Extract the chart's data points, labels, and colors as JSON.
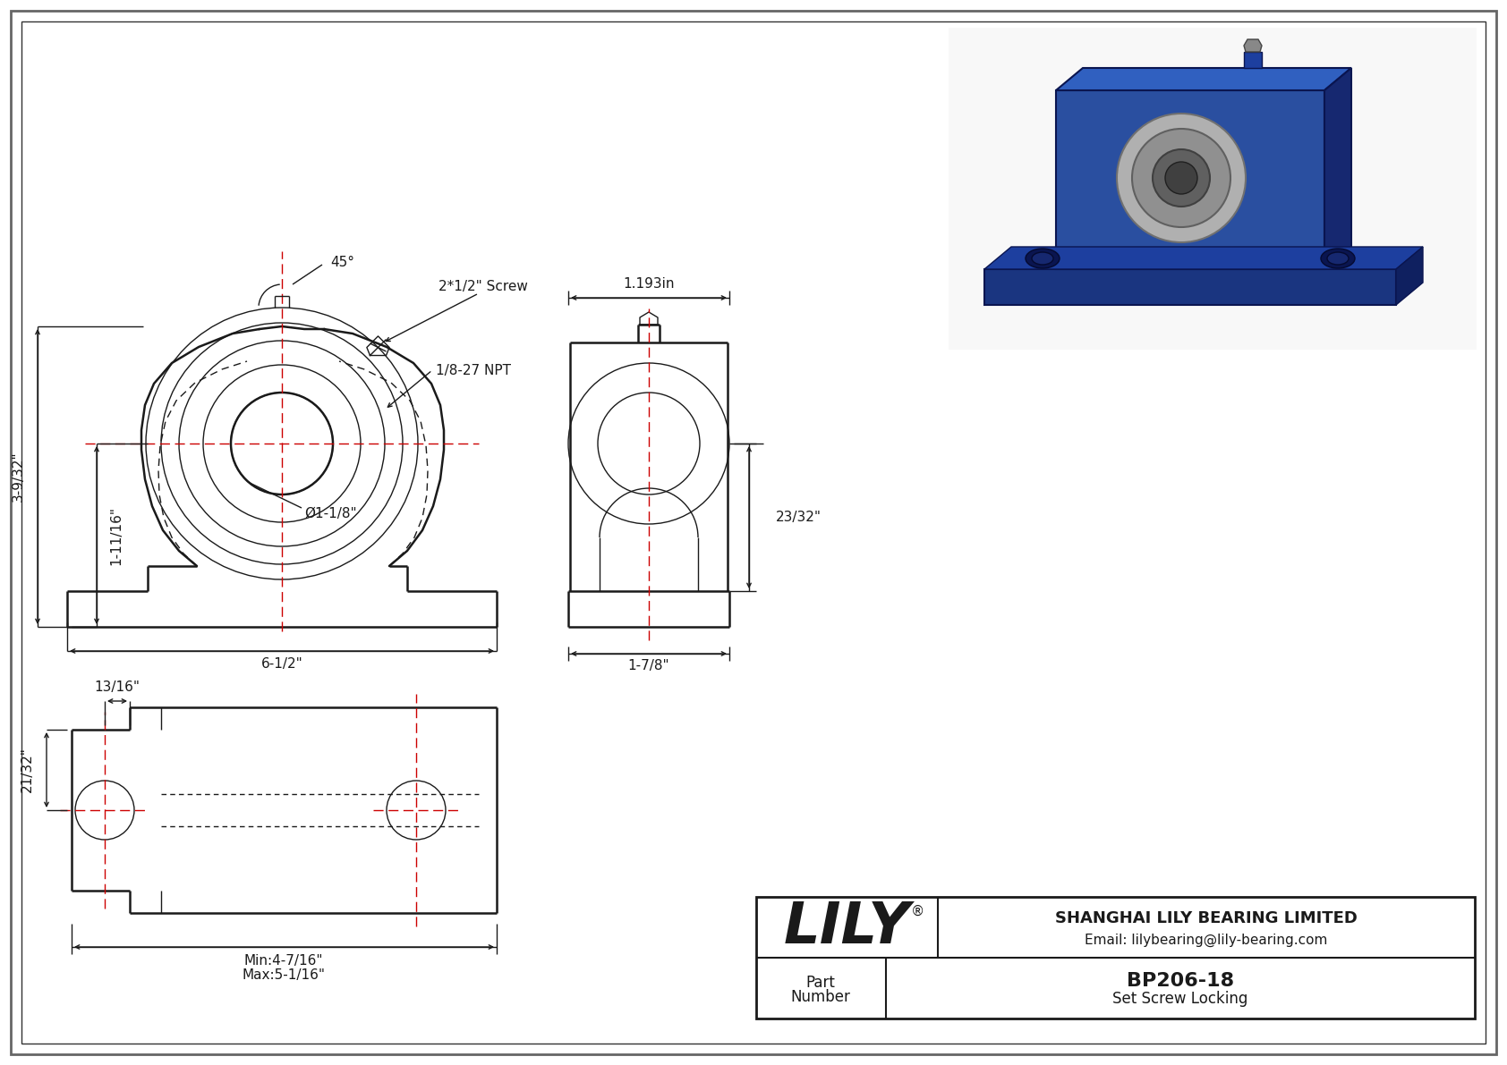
{
  "bg_color": "#ffffff",
  "line_color": "#1a1a1a",
  "red_color": "#cc0000",
  "blue_dark": "#1a3580",
  "blue_mid": "#2a4fa0",
  "blue_light": "#3060c0",
  "silver": "#b8b8b8",
  "silver_dark": "#888888",
  "company": "SHANGHAI LILY BEARING LIMITED",
  "email": "Email: lilybearing@lily-bearing.com",
  "part_number": "BP206-18",
  "part_type": "Set Screw Locking",
  "lily_logo": "LILY",
  "dims": {
    "total_height": "3-9/32\"",
    "base_height": "1-11/16\"",
    "bore": "Ø1-1/8\"",
    "total_width": "6-1/2\"",
    "side_width": "1-7/8\"",
    "side_height": "23/32\"",
    "top_dim": "1.193in",
    "screw_label": "2*1/2\" Screw",
    "npt_label": "1/8-27 NPT",
    "angle_label": "45°",
    "bot_min": "Min:4-7/16\"",
    "bot_max": "Max:5-1/16\"",
    "bot_left": "13/16\"",
    "bot_vert": "21/32\""
  }
}
